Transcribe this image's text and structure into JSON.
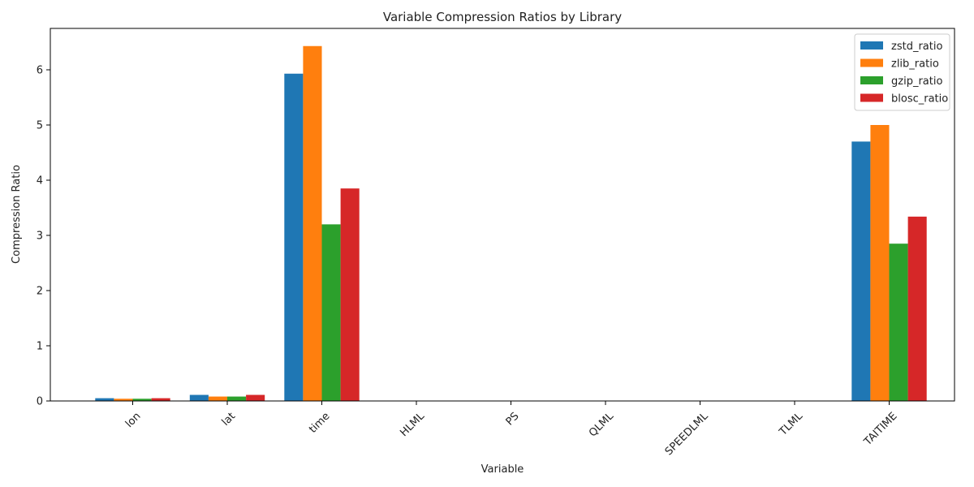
{
  "chart_data": {
    "type": "bar",
    "title": "Variable Compression Ratios by Library",
    "xlabel": "Variable",
    "ylabel": "Compression Ratio",
    "categories": [
      "lon",
      "lat",
      "time",
      "HLML",
      "PS",
      "QLML",
      "SPEEDLML",
      "TLML",
      "TAITIME"
    ],
    "yticks": [
      "0",
      "1",
      "2",
      "3",
      "4",
      "5",
      "6"
    ],
    "ylim": [
      0,
      6.75
    ],
    "grid": false,
    "legend_position": "top-right",
    "series": [
      {
        "name": "zstd_ratio",
        "color": "#1f77b4",
        "values": [
          0.05,
          0.11,
          5.93,
          0,
          0,
          0,
          0,
          0,
          4.7
        ]
      },
      {
        "name": "zlib_ratio",
        "color": "#ff7f0e",
        "values": [
          0.04,
          0.08,
          6.43,
          0,
          0,
          0,
          0,
          0,
          5.0
        ]
      },
      {
        "name": "gzip_ratio",
        "color": "#2ca02c",
        "values": [
          0.04,
          0.08,
          3.2,
          0,
          0,
          0,
          0,
          0,
          2.85
        ]
      },
      {
        "name": "blosc_ratio",
        "color": "#d62728",
        "values": [
          0.05,
          0.11,
          3.85,
          0,
          0,
          0,
          0,
          0,
          3.34
        ]
      }
    ]
  }
}
